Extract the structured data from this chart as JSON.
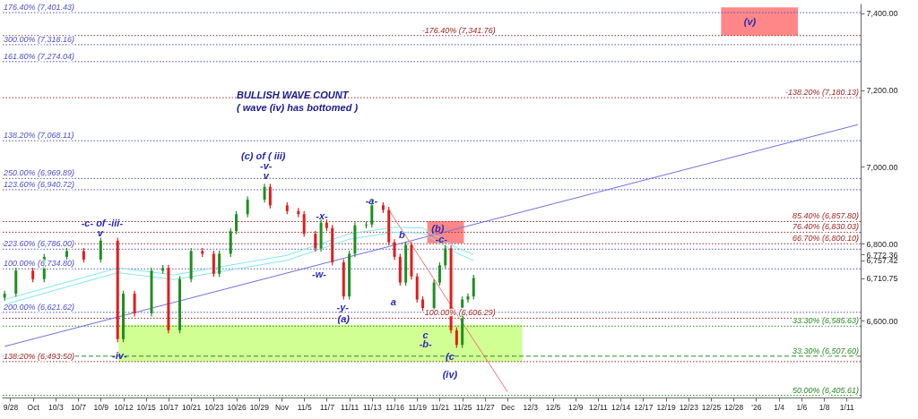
{
  "chart_data": {
    "type": "candlestick",
    "title": "BULLISH  WAVE  COUNT",
    "subtitle": "( wave (iv) has bottomed )",
    "categories": [
      null,
      "9/28",
      null,
      null,
      null,
      "Oct",
      null,
      null,
      null,
      "10/3",
      null,
      null,
      null,
      "10/7",
      null,
      null,
      null,
      "10/9",
      null,
      null,
      null,
      "10/12",
      null,
      null,
      null,
      "10/15",
      null,
      null,
      null,
      "10/17",
      null,
      null,
      null,
      "10/21",
      null,
      null,
      null,
      "10/23",
      null,
      null,
      null,
      "10/26",
      null,
      null,
      null,
      "10/29",
      null,
      null,
      null,
      "Nov",
      null,
      null,
      null,
      "11/5",
      null,
      null,
      null,
      "11/7",
      null,
      null,
      null,
      "11/11",
      null,
      null,
      null,
      "11/13",
      null,
      null,
      null,
      "11/16",
      null,
      null,
      null,
      "11/19",
      null,
      null,
      null,
      "11/21",
      null,
      null,
      null,
      "11/25",
      null,
      null,
      null,
      "11/27",
      null,
      null,
      null,
      "Dec",
      null,
      null,
      null,
      "12/3",
      null,
      null,
      null,
      "12/5",
      null,
      null,
      null,
      "12/9",
      null,
      null,
      null,
      "12/11",
      null,
      null,
      null,
      "12/14",
      null,
      null,
      null,
      "12/17",
      null,
      null,
      null,
      "12/19",
      null,
      null,
      null,
      "12/23",
      null,
      null,
      null,
      "12/25",
      null,
      null,
      null,
      "12/28",
      null,
      null,
      null,
      "'26",
      null,
      null,
      null,
      "1/4",
      null,
      null,
      null,
      "1/6",
      null,
      null,
      null,
      "1/8",
      null,
      null,
      null,
      "1/11",
      null,
      null
    ],
    "ohlc": [
      [
        6660,
        6678,
        6652,
        6670
      ],
      null,
      [
        6670,
        6738,
        6662,
        6730
      ],
      null,
      null,
      [
        6730,
        6738,
        6700,
        6708
      ],
      null,
      [
        6708,
        6774,
        6700,
        6766
      ],
      null,
      null,
      null,
      [
        6766,
        6789,
        6758,
        6781
      ],
      null,
      null,
      [
        6781,
        6789,
        6751,
        6759
      ],
      null,
      null,
      [
        6759,
        6816,
        6751,
        6808
      ],
      null,
      null,
      [
        6808,
        6816,
        6544,
        6552
      ],
      [
        6552,
        6678,
        6544,
        6670
      ],
      null,
      [
        6670,
        6678,
        6611,
        6619
      ],
      null,
      null,
      [
        6619,
        6738,
        6611,
        6730
      ],
      null,
      [
        6730,
        6745,
        6722,
        6737
      ],
      [
        6737,
        6745,
        6567,
        6575
      ],
      null,
      [
        6575,
        6716,
        6567,
        6708
      ],
      null,
      [
        6708,
        6789,
        6700,
        6781
      ],
      null,
      [
        6781,
        6789,
        6766,
        6774
      ],
      null,
      [
        6774,
        6782,
        6714,
        6722
      ],
      [
        6722,
        6782,
        6714,
        6774
      ],
      null,
      [
        6774,
        6841,
        6766,
        6833
      ],
      [
        6833,
        6885,
        6825,
        6877
      ],
      null,
      [
        6877,
        6923,
        6869,
        6915
      ],
      null,
      null,
      [
        6915,
        6956,
        6907,
        6948
      ],
      [
        6948,
        6956,
        6892,
        6900
      ],
      null,
      null,
      [
        6900,
        6908,
        6877,
        6885
      ],
      null,
      [
        6885,
        6893,
        6869,
        6877
      ],
      [
        6877,
        6885,
        6818,
        6826
      ],
      null,
      [
        6826,
        6834,
        6780,
        6788
      ],
      [
        6788,
        6863,
        6780,
        6855
      ],
      [
        6855,
        6863,
        6833,
        6841
      ],
      [
        6841,
        6849,
        6744,
        6752
      ],
      null,
      [
        6752,
        6760,
        6655,
        6663
      ],
      [
        6663,
        6782,
        6655,
        6774
      ],
      [
        6774,
        6856,
        6766,
        6848
      ],
      null,
      [
        6848,
        6858,
        6840,
        6850
      ],
      [
        6850,
        6908,
        6842,
        6900
      ],
      null,
      [
        6900,
        6908,
        6880,
        6888
      ],
      [
        6888,
        6896,
        6796,
        6804
      ],
      [
        6804,
        6812,
        6758,
        6766
      ],
      [
        6766,
        6774,
        6691,
        6699
      ],
      [
        6699,
        6805,
        6691,
        6797
      ],
      [
        6797,
        6805,
        6707,
        6715
      ],
      [
        6715,
        6723,
        6647,
        6655
      ],
      [
        6655,
        6663,
        6625,
        6633
      ],
      null,
      [
        6633,
        6707,
        6625,
        6699
      ],
      [
        6699,
        6752,
        6691,
        6744
      ],
      [
        6744,
        6796,
        6736,
        6788
      ],
      [
        6788,
        6796,
        6567,
        6575
      ],
      [
        6575,
        6583,
        6529,
        6537
      ],
      [
        6537,
        6663,
        6529,
        6655
      ],
      [
        6655,
        6671,
        6647,
        6663
      ],
      [
        6663,
        6719,
        6655,
        6711
      ],
      null,
      null,
      null,
      null,
      null,
      null,
      null,
      null,
      null,
      null,
      null,
      null,
      null,
      null,
      null,
      null,
      null,
      null,
      null,
      null,
      null,
      null,
      null,
      null,
      null,
      null,
      null,
      null,
      null,
      null,
      null,
      null,
      null,
      null,
      null,
      null,
      null,
      null,
      null,
      null,
      null,
      null,
      null,
      null,
      null,
      null,
      null,
      null,
      null,
      null,
      null,
      null,
      null,
      null,
      null,
      null,
      null,
      null,
      null,
      null,
      null,
      null,
      null,
      null,
      null,
      null,
      null,
      null
    ],
    "colors": [
      "#1f8f1f",
      null,
      "#1f8f1f",
      null,
      null,
      "#e41c1c",
      null,
      "#1f8f1f",
      null,
      null,
      null,
      "#1f8f1f",
      null,
      null,
      "#e41c1c",
      null,
      null,
      "#1f8f1f",
      null,
      null,
      "#e41c1c",
      "#1f8f1f",
      null,
      "#e41c1c",
      null,
      null,
      "#1f8f1f",
      null,
      "#1f8f1f",
      "#e41c1c",
      null,
      "#1f8f1f",
      null,
      "#1f8f1f",
      null,
      "#e41c1c",
      null,
      "#e41c1c",
      "#1f8f1f",
      null,
      "#1f8f1f",
      "#1f8f1f",
      null,
      "#1f8f1f",
      null,
      null,
      "#1f8f1f",
      "#e41c1c",
      null,
      null,
      "#e41c1c",
      null,
      "#e41c1c",
      "#e41c1c",
      null,
      "#e41c1c",
      "#1f8f1f",
      "#e41c1c",
      "#e41c1c",
      null,
      "#e41c1c",
      "#1f8f1f",
      "#1f8f1f",
      null,
      "#1f8f1f",
      "#1f8f1f",
      null,
      "#e41c1c",
      "#e41c1c",
      "#e41c1c",
      "#e41c1c",
      "#1f8f1f",
      "#e41c1c",
      "#e41c1c",
      "#e41c1c",
      null,
      "#1f8f1f",
      "#1f8f1f",
      "#1f8f1f",
      "#e41c1c",
      "#e41c1c",
      "#1f8f1f",
      "#1f8f1f",
      "#1f8f1f",
      null,
      null,
      null,
      null,
      null,
      null,
      null,
      null,
      null,
      null,
      null,
      null,
      null,
      null,
      null,
      null,
      null,
      null,
      null,
      null,
      null,
      null,
      null,
      null,
      null,
      null,
      null,
      null,
      null,
      null,
      null,
      null,
      null,
      null,
      null,
      null,
      null,
      null,
      null,
      null,
      null,
      null,
      null,
      null,
      null,
      null,
      null,
      null,
      null,
      null,
      null,
      null,
      null,
      null,
      null,
      null,
      null,
      null,
      null,
      null,
      null,
      null,
      null,
      null,
      null,
      null,
      null,
      null
    ],
    "series": [
      {
        "type": "line",
        "color": "#7070e0",
        "values": [
          6533,
          null,
          null,
          null,
          null,
          null,
          null,
          null,
          null,
          null,
          null,
          null,
          null,
          null,
          null,
          null,
          null,
          null,
          null,
          null,
          null,
          null,
          null,
          null,
          null,
          null,
          null,
          null,
          null,
          null,
          null,
          null,
          null,
          null,
          null,
          null,
          null,
          null,
          null,
          null,
          null,
          null,
          null,
          null,
          null,
          null,
          null,
          null,
          null,
          null,
          null,
          null,
          null,
          null,
          null,
          null,
          null,
          null,
          null,
          null,
          null,
          null,
          null,
          null,
          null,
          null,
          null,
          null,
          null,
          null,
          null,
          null,
          null,
          null,
          null,
          null,
          null,
          null,
          null,
          null,
          null,
          null,
          null,
          null,
          null,
          null,
          null,
          null,
          null,
          null,
          null,
          null,
          null,
          null,
          null,
          null,
          null,
          null,
          null,
          null,
          null,
          null,
          null,
          null,
          null,
          null,
          null,
          null,
          null,
          null,
          null,
          null,
          null,
          null,
          null,
          null,
          null,
          null,
          null,
          null,
          null,
          null,
          null,
          null,
          null,
          null,
          null,
          null,
          null,
          null,
          null,
          null,
          null,
          null,
          null,
          null,
          null,
          null,
          null,
          null,
          null,
          null,
          null,
          null,
          null,
          null,
          null,
          null,
          null,
          null,
          null,
          7110
        ]
      },
      {
        "type": "line",
        "color": "#f07070",
        "values": [
          null,
          null,
          null,
          null,
          null,
          null,
          null,
          null,
          null,
          null,
          null,
          null,
          null,
          null,
          null,
          null,
          null,
          null,
          null,
          null,
          null,
          null,
          null,
          null,
          null,
          null,
          null,
          null,
          null,
          null,
          null,
          null,
          null,
          null,
          null,
          null,
          null,
          null,
          null,
          null,
          null,
          null,
          null,
          null,
          null,
          null,
          null,
          null,
          null,
          null,
          null,
          null,
          null,
          null,
          null,
          null,
          null,
          null,
          null,
          null,
          null,
          null,
          null,
          null,
          null,
          null,
          null,
          null,
          6888,
          null,
          null,
          null,
          null,
          null,
          null,
          null,
          null,
          null,
          null,
          null,
          null,
          null,
          null,
          null,
          null,
          null,
          null,
          null,
          null,
          6415,
          null,
          null,
          null,
          null,
          null,
          null,
          null,
          null,
          null,
          null,
          null,
          null,
          null,
          null,
          null,
          null,
          null,
          null,
          null,
          null,
          null,
          null,
          null,
          null,
          null,
          null,
          null,
          null,
          null,
          null,
          null,
          null,
          null,
          null,
          null,
          null,
          null,
          null,
          null,
          null,
          null,
          null,
          null,
          null,
          null,
          null,
          null,
          null,
          null,
          null,
          null,
          null,
          null,
          null,
          null,
          null,
          null,
          null,
          null,
          null,
          null,
          null
        ]
      },
      {
        "type": "line",
        "color": "#80e8f0",
        "values": [
          6655,
          null,
          null,
          null,
          null,
          null,
          null,
          null,
          null,
          null,
          null,
          null,
          null,
          null,
          null,
          null,
          null,
          null,
          null,
          null,
          6737,
          null,
          null,
          null,
          null,
          null,
          null,
          null,
          null,
          null,
          6719,
          null,
          null,
          null,
          null,
          null,
          null,
          null,
          null,
          null,
          null,
          null,
          null,
          null,
          null,
          null,
          null,
          null,
          null,
          null,
          6770,
          null,
          null,
          null,
          null,
          null,
          null,
          null,
          null,
          null,
          null,
          6826,
          null,
          null,
          null,
          null,
          null,
          null,
          null,
          6843,
          null,
          null,
          null,
          null,
          6841,
          null,
          null,
          null,
          null,
          null,
          6790,
          null,
          null,
          6772,
          null,
          null,
          null,
          null,
          null,
          null,
          null,
          null,
          null,
          null,
          null,
          null,
          null,
          null,
          null,
          null,
          null,
          null,
          null,
          null,
          null,
          null,
          null,
          null,
          null,
          null,
          null,
          null,
          null,
          null,
          null,
          null,
          null,
          null,
          null,
          null,
          null,
          null,
          null,
          null,
          null,
          null,
          null,
          null,
          null,
          null,
          null,
          null,
          null,
          null,
          null,
          null,
          null,
          null,
          null,
          null,
          null,
          null,
          null,
          null,
          null,
          null,
          null,
          null,
          null,
          null,
          null,
          null
        ]
      },
      {
        "type": "line",
        "color": "#80e8f0",
        "values": [
          6642,
          null,
          null,
          null,
          null,
          null,
          null,
          null,
          null,
          null,
          null,
          null,
          null,
          null,
          null,
          null,
          null,
          null,
          null,
          null,
          6725,
          null,
          null,
          null,
          null,
          null,
          null,
          null,
          null,
          null,
          6707,
          null,
          null,
          null,
          null,
          null,
          null,
          null,
          null,
          null,
          null,
          null,
          null,
          null,
          null,
          null,
          null,
          null,
          null,
          null,
          6757,
          null,
          null,
          null,
          null,
          null,
          null,
          null,
          null,
          null,
          null,
          6812,
          null,
          null,
          null,
          null,
          null,
          null,
          null,
          6830,
          null,
          null,
          null,
          null,
          6828,
          null,
          null,
          null,
          null,
          null,
          6776,
          null,
          null,
          6757,
          null,
          null,
          null,
          null,
          null,
          null,
          null,
          null,
          null,
          null,
          null,
          null,
          null,
          null,
          null,
          null,
          null,
          null,
          null,
          null,
          null,
          null,
          null,
          null,
          null,
          null,
          null,
          null,
          null,
          null,
          null,
          null,
          null,
          null,
          null,
          null,
          null,
          null,
          null,
          null,
          null,
          null,
          null,
          null,
          null,
          null,
          null,
          null,
          null,
          null,
          null,
          null,
          null,
          null,
          null,
          null,
          null,
          null,
          null,
          null,
          null,
          null,
          null,
          null,
          null,
          null,
          null,
          null
        ]
      }
    ],
    "bands": [
      {
        "axis": "y",
        "from": 6493,
        "to": 6589,
        "color": "#ccff88"
      },
      {
        "axis": "y",
        "from": 6801,
        "to": 6859,
        "color": "#ff7a7a"
      },
      {
        "axis": "y",
        "from": 7341.76,
        "to": 7415,
        "color": "#ff7a7a"
      }
    ],
    "ref_lines": [
      {
        "axis": "y",
        "value": 7401.43,
        "label": "176.40% (7,401.43)",
        "color": "#5050d0",
        "line_style": "dotted"
      },
      {
        "axis": "y",
        "value": 7318.16,
        "label": "300.00% (7,318.16)",
        "color": "#5050d0",
        "line_style": "dotted"
      },
      {
        "axis": "y",
        "value": 7274.04,
        "label": "161.80% (7,274.04)",
        "color": "#5050d0",
        "line_style": "dotted"
      },
      {
        "axis": "y",
        "value": 7068.11,
        "label": "138.20% (7,068.11)",
        "color": "#5050d0",
        "line_style": "dotted"
      },
      {
        "axis": "y",
        "value": 6969.89,
        "label": "250.00% (6,969.89)",
        "color": "#5050d0",
        "line_style": "dotted"
      },
      {
        "axis": "y",
        "value": 6940.72,
        "label": "123.60% (6,940.72)",
        "color": "#5050d0",
        "line_style": "dotted"
      },
      {
        "axis": "y",
        "value": 6786,
        "label": "223.60% (6,786.00)",
        "color": "#5050d0",
        "line_style": "dotted"
      },
      {
        "axis": "y",
        "value": 6734.8,
        "label": "100.00% (6,734.80)",
        "color": "#5050d0",
        "line_style": "dotted"
      },
      {
        "axis": "y",
        "value": 6621.62,
        "label": "200.00% (6,621.62)",
        "color": "#5050d0",
        "line_style": "dotted"
      },
      {
        "axis": "y",
        "value": 7341.76,
        "label": "-176.40% (7,341.76)",
        "color": "#a02828",
        "line_style": "dotted"
      },
      {
        "axis": "y",
        "value": 7180.13,
        "label": "-138.20% (7,180.13)",
        "color": "#a02828",
        "line_style": "dotted"
      },
      {
        "axis": "y",
        "value": 6857.8,
        "label": "85.40% (6,857.80)",
        "color": "#a02828",
        "line_style": "dotted"
      },
      {
        "axis": "y",
        "value": 6830.03,
        "label": "76.40% (6,830.03)",
        "color": "#a02828",
        "line_style": "dotted"
      },
      {
        "axis": "y",
        "value": 6800.1,
        "label": "66.70% (6,800.10)",
        "color": "#a02828",
        "line_style": "dotted"
      },
      {
        "axis": "y",
        "value": 6585.63,
        "label": "33.30% (6,585.63)",
        "color": "#2a8a2a",
        "line_style": "dotted"
      },
      {
        "axis": "y",
        "value": 6606.29,
        "label": "100.00% (6,606.29)",
        "color": "#a02828",
        "line_style": "dotted"
      },
      {
        "axis": "y",
        "value": 6507.6,
        "label": "33.30% (6,507.60)",
        "color": "#2a8a2a",
        "line_style": "dashed"
      },
      {
        "axis": "y",
        "value": 6493.5,
        "label": "138.20% (6,493.50)",
        "color": "#a02828",
        "line_style": "dotted"
      },
      {
        "axis": "y",
        "value": 6405.61,
        "label": "50.00% (6,405.61)",
        "color": "#2a8a2a",
        "line_style": "dotted"
      }
    ],
    "annotations": [
      "(c) of ( iii)",
      "-v-",
      "v",
      "-c- of -iii-",
      "v",
      "-iv-",
      "-x-",
      "-w-",
      "-y-",
      "(a)",
      "-a-",
      "b",
      "(b)",
      "-c-",
      "a",
      "c",
      "-b-",
      "(c",
      "(iv)",
      "(v)"
    ],
    "ylim": [
      6400,
      7425
    ],
    "yticks": [
      {
        "value": 6600,
        "label": "6,600.00"
      },
      {
        "value": 6710.75,
        "label": "6,710.75"
      },
      {
        "value": 6757.42,
        "label": "6,757.42"
      },
      {
        "value": 6772.36,
        "label": "6,772.36"
      },
      {
        "value": 6800,
        "label": "6,800.00"
      },
      {
        "value": 7000,
        "label": "7,000.00"
      },
      {
        "value": 7200,
        "label": "7,200.00"
      },
      {
        "value": 7400,
        "label": "7,400.00"
      }
    ]
  }
}
